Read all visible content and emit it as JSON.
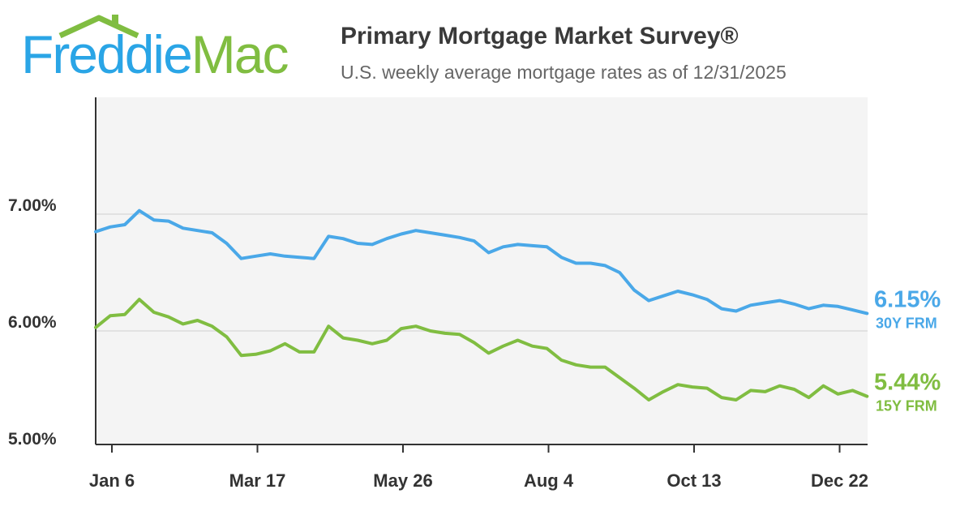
{
  "header": {
    "logo": {
      "part1": "Freddie",
      "part2": "Mac",
      "colors": {
        "primary": "#2aa5e6",
        "secondary": "#80bd41"
      },
      "icon": "house-roof-icon"
    },
    "title": "Primary Mortgage Market Survey®",
    "subtitle": "U.S. weekly average mortgage rates as of 12/31/2025"
  },
  "chart_data": {
    "type": "line",
    "title": "Primary Mortgage Market Survey®",
    "subtitle": "U.S. weekly average mortgage rates as of 12/31/2025",
    "ylim": [
      5.0,
      7.9
    ],
    "y_ticks": [
      {
        "value": 5.0,
        "label": "5.00%"
      },
      {
        "value": 6.0,
        "label": "6.00%"
      },
      {
        "value": 7.0,
        "label": "7.00%"
      }
    ],
    "x_ticks": [
      {
        "week": 1,
        "label": "Jan 6"
      },
      {
        "week": 11,
        "label": "Mar 17"
      },
      {
        "week": 21,
        "label": "May 26"
      },
      {
        "week": 31,
        "label": "Aug 4"
      },
      {
        "week": 41,
        "label": "Oct 13"
      },
      {
        "week": 51,
        "label": "Dec 22"
      }
    ],
    "gridlines": "horizontal",
    "plot_background": "#f4f4f4",
    "series": [
      {
        "name": "30Y FRM",
        "end_label": "6.15%",
        "color": "#4aa8e8",
        "values": [
          6.85,
          6.89,
          6.91,
          7.03,
          6.95,
          6.94,
          6.88,
          6.86,
          6.84,
          6.75,
          6.62,
          6.64,
          6.66,
          6.64,
          6.63,
          6.62,
          6.81,
          6.79,
          6.75,
          6.74,
          6.79,
          6.83,
          6.86,
          6.84,
          6.82,
          6.8,
          6.77,
          6.67,
          6.72,
          6.74,
          6.73,
          6.72,
          6.63,
          6.58,
          6.58,
          6.56,
          6.5,
          6.35,
          6.26,
          6.3,
          6.34,
          6.31,
          6.27,
          6.19,
          6.17,
          6.22,
          6.24,
          6.26,
          6.23,
          6.19,
          6.22,
          6.21,
          6.18,
          6.15
        ]
      },
      {
        "name": "15Y FRM",
        "end_label": "5.44%",
        "color": "#80bd41",
        "values": [
          6.03,
          6.13,
          6.14,
          6.27,
          6.16,
          6.12,
          6.06,
          6.09,
          6.04,
          5.95,
          5.79,
          5.8,
          5.83,
          5.89,
          5.82,
          5.82,
          6.04,
          5.94,
          5.92,
          5.89,
          5.92,
          6.02,
          6.04,
          6.0,
          5.98,
          5.97,
          5.9,
          5.81,
          5.87,
          5.92,
          5.87,
          5.85,
          5.75,
          5.71,
          5.69,
          5.69,
          5.6,
          5.51,
          5.41,
          5.48,
          5.54,
          5.52,
          5.51,
          5.43,
          5.41,
          5.49,
          5.48,
          5.53,
          5.5,
          5.43,
          5.53,
          5.46,
          5.49,
          5.44
        ]
      }
    ]
  }
}
